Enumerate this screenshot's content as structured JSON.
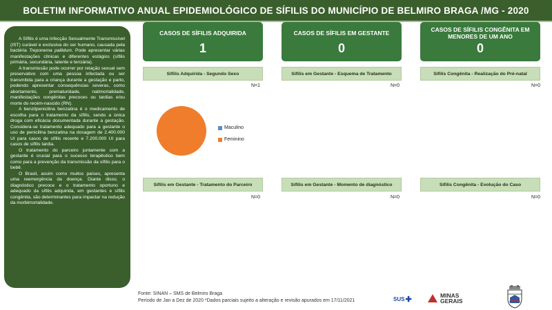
{
  "title": "BOLETIM INFORMATIVO ANUAL EPIDEMIOLÓGICO DE SÍFILIS DO MUNICÍPIO  DE BELMIRO BRAGA /MG - 2020",
  "sidebar": {
    "p1_a": "A Sífilis é uma Infecção Sexualmente Transmissível (IST) curável e exclusiva do ser humano, causada pela bactéria ",
    "p1_em": "Treponema pallidum",
    "p1_b": ". Pode apresentar várias manifestações clínicas e diferentes estágios (sífilis primária, secundária, latente e terciária).",
    "p2": "A transmissão pode ocorrer por relação sexual sem preservativo com uma pessoa infectada ou ser transmitida para a criança durante a gestação e parto, podendo apresentar consequências severas, como abortamento, prematuridade, natimortalidade, manifestações congênitas precoces ou tardias e/ou morte do recém-nascido (RN).",
    "p3": "A benzilpenicilina benzatina é o medicamento de escolha para o tratamento da sífilis, sendo a única droga com eficácia documentada durante a gestação. Considera-se tratamento adequado para a gestante o uso de penicilina benzatina na dosagem de 2.400.000 UI para casos de sífilis recente e 7.200.000 UI para casos de sífilis tardia.",
    "p4": "O tratamento do parceiro juntamente com a gestante é crucial para o sucesso terapêutico bem como para a prevenção da transmissão da sífilis para o bebê.",
    "p5": "O Brasil, assim como muitos países, apresenta uma reemergência da doença. Diante disso, o diagnóstico precoce e o tratamento oportuno e adequado da sífilis adquirida, em gestantes e sífilis congênita, são determinantes para impactar na redução da morbimortalidade."
  },
  "cards": [
    {
      "title": "CASOS DE SÍFILIS ADQUIRIDA",
      "value": "1"
    },
    {
      "title": "CASOS DE SÍFILIS EM GESTANTE",
      "value": "0"
    },
    {
      "title": "CASOS DE SÍFILIS CONGÊNITA EM MENORES DE UM ANO",
      "value": "0"
    }
  ],
  "panels": [
    {
      "label": "Sífilis Adquirida - Segundo Sexo",
      "n": "N=1"
    },
    {
      "label": "Sífilis em Gestante - Esquema de Tratamento",
      "n": "N=0"
    },
    {
      "label": "Sífilis Congênita - Realização do Pré-natal",
      "n": "N=0"
    },
    {
      "label": "Sífilis em Gestante - Tratamento do Parceiro",
      "n": "N=0"
    },
    {
      "label": "Sífilis em Gestante - Momento de diagnóstico",
      "n": "N=0"
    },
    {
      "label": "Sífilis Congênita - Evolução do Caso",
      "n": "N=0"
    }
  ],
  "chart_data": {
    "type": "pie",
    "categories": [
      "Maculino",
      "Feminino"
    ],
    "values": [
      0,
      1
    ],
    "colors": [
      "#5b8cc4",
      "#ef7d2b"
    ],
    "legend_position": "right"
  },
  "footer": {
    "source": "Fonte: SINAN – SMS de Belmiro Braga",
    "period": "Período de Jan a Dez de 2020 *Dados parciais sujeito a alteração e revisão apurados em 17/11/2021"
  },
  "logos": {
    "sus": "SUS",
    "minas_gerais": "MINAS\nGERAIS"
  },
  "colors": {
    "header": "#3a5e2c",
    "card": "#3a7a3c",
    "label_bg": "#c7deb8"
  }
}
